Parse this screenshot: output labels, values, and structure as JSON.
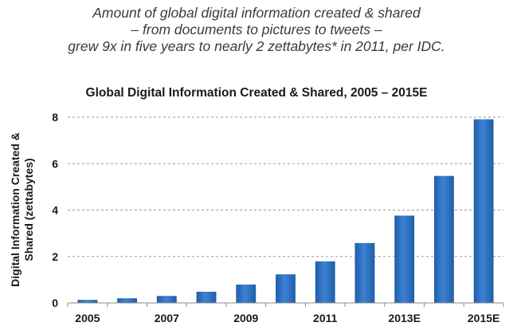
{
  "caption": {
    "line1": "Amount of global digital information created & shared",
    "line2": "– from documents to pictures to tweets –",
    "line3": "grew 9x in five years to nearly 2 zettabytes* in 2011, per IDC."
  },
  "chart_data": {
    "type": "bar",
    "title": "Global Digital Information Created & Shared, 2005 – 2015E",
    "ylabel_lines": [
      "Digital Information Created &",
      "Shared (zettabytes)"
    ],
    "xlabel": "",
    "categories": [
      "2005",
      "2006",
      "2007",
      "2008",
      "2009",
      "2010",
      "2011",
      "2012E",
      "2013E",
      "2014E",
      "2015E"
    ],
    "x_tick_labels": [
      "2005",
      "",
      "2007",
      "",
      "2009",
      "",
      "2011",
      "",
      "2013E",
      "",
      "2015E"
    ],
    "values": [
      0.13,
      0.2,
      0.3,
      0.48,
      0.79,
      1.23,
      1.79,
      2.58,
      3.76,
      5.47,
      7.91
    ],
    "ylim": [
      0,
      8
    ],
    "yticks": [
      0,
      2,
      4,
      6,
      8
    ],
    "grid": true,
    "bar_color": "#1f5ea8",
    "bar_color_light": "#3d82d4"
  }
}
